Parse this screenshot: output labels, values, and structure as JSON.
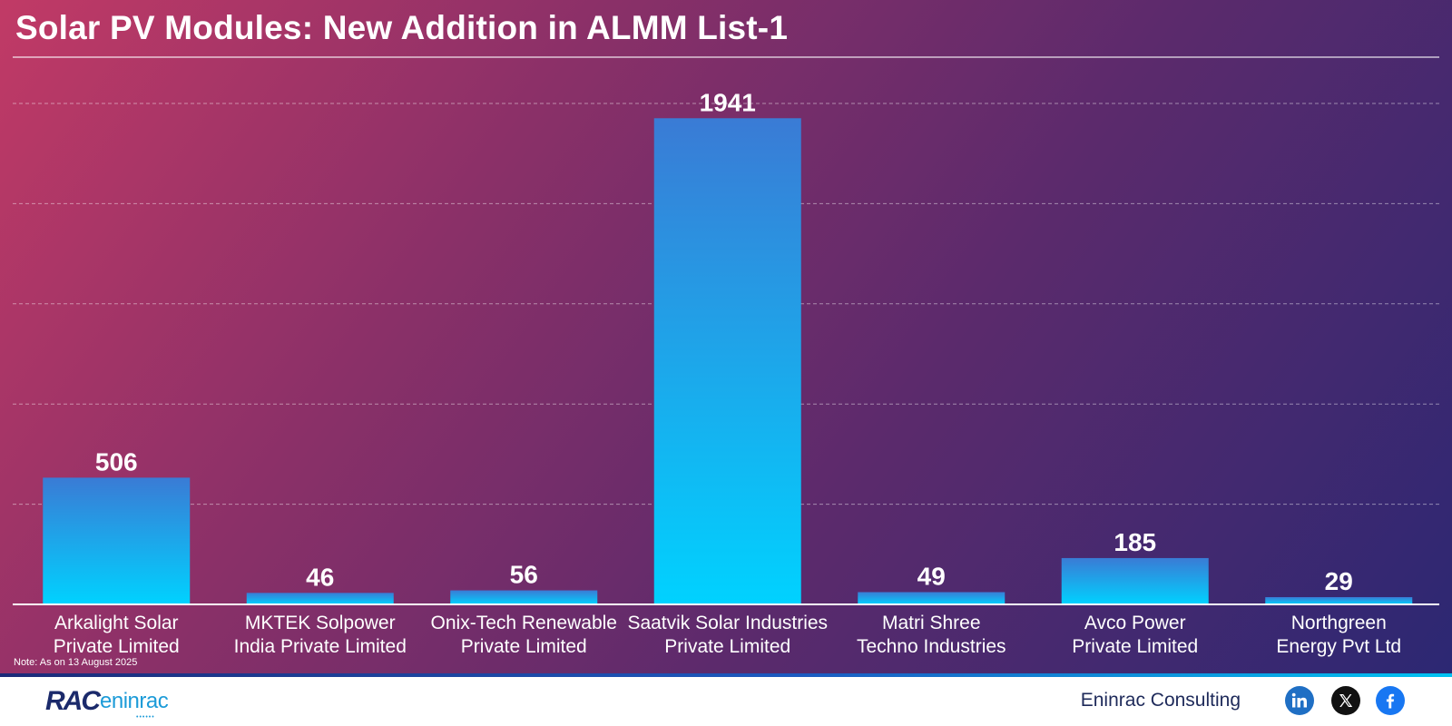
{
  "title": "Solar PV Modules: New Addition in ALMM List-1",
  "note": "Note: As on 13 August 2025",
  "footer": {
    "logo_mark": "RAC",
    "logo_word": "eninrac",
    "brand_name": "Eninrac Consulting",
    "social_icons": [
      "linkedin-icon",
      "x-icon",
      "facebook-icon"
    ]
  },
  "colors": {
    "bar_top": "#3a7bd5",
    "bar_bottom": "#00d2ff",
    "background_start": "#c13a66",
    "background_end": "#2c2873"
  },
  "chart_data": {
    "type": "bar",
    "title": "Solar PV Modules: New Addition in ALMM List-1",
    "xlabel": "",
    "ylabel": "",
    "categories": [
      [
        "Arkalight Solar",
        "Private Limited"
      ],
      [
        "MKTEK Solpower",
        "India Private Limited"
      ],
      [
        "Onix-Tech Renewable",
        "Private Limited"
      ],
      [
        "Saatvik Solar Industries",
        "Private Limited"
      ],
      [
        "Matri Shree",
        "Techno Industries"
      ],
      [
        "Avco Power",
        "Private Limited"
      ],
      [
        "Northgreen",
        "Energy Pvt Ltd"
      ]
    ],
    "values": [
      506,
      46,
      56,
      1941,
      49,
      185,
      29
    ],
    "ylim": [
      0,
      2000
    ],
    "grid": true,
    "legend": "none"
  }
}
